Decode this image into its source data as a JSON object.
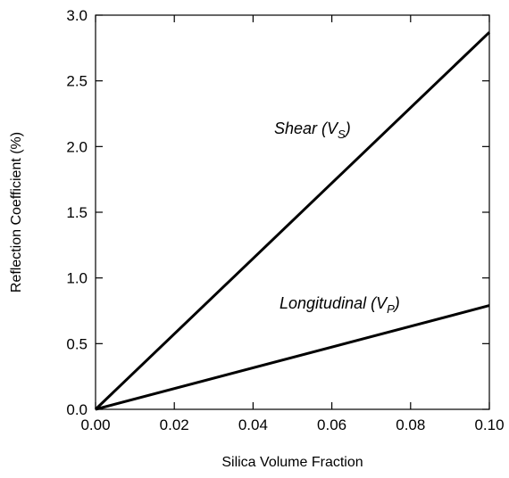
{
  "chart_data": {
    "type": "line",
    "title": "",
    "xlabel": "Silica Volume Fraction",
    "ylabel": "Reflection Coefficient (%)",
    "xlim": [
      0.0,
      0.1
    ],
    "ylim": [
      0.0,
      3.0
    ],
    "x_ticks": [
      "0.00",
      "0.02",
      "0.04",
      "0.06",
      "0.08",
      "0.10"
    ],
    "y_ticks": [
      "0.0",
      "0.5",
      "1.0",
      "1.5",
      "2.0",
      "2.5",
      "3.0"
    ],
    "grid": false,
    "legend": "none",
    "series": [
      {
        "label_main": "Shear (V",
        "label_sub": "S",
        "label_end": ")",
        "color": "#000000",
        "x": [
          0.0,
          0.1
        ],
        "y": [
          0.0,
          2.87
        ]
      },
      {
        "label_main": "Longitudinal (V",
        "label_sub": "P",
        "label_end": ")",
        "color": "#000000",
        "x": [
          0.0,
          0.1
        ],
        "y": [
          0.0,
          0.79
        ]
      }
    ]
  }
}
